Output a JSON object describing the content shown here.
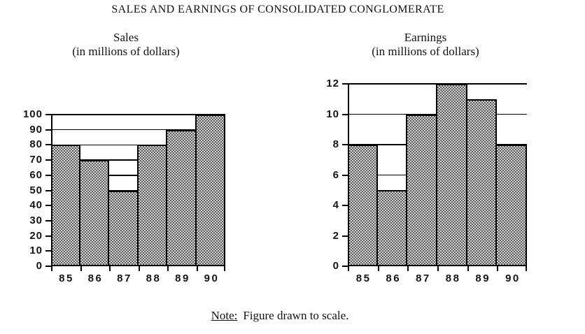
{
  "page": {
    "title": "SALES AND EARNINGS OF CONSOLIDATED CONGLOMERATE",
    "note_label": "Note:",
    "note_text": "Figure drawn to scale."
  },
  "chart_data": [
    {
      "type": "bar",
      "title": "Sales",
      "subtitle": "(in millions of dollars)",
      "categories": [
        "85",
        "86",
        "87",
        "88",
        "89",
        "90"
      ],
      "values": [
        80,
        70,
        50,
        80,
        90,
        100
      ],
      "xlabel": "",
      "ylabel": "",
      "ylim": [
        0,
        100
      ],
      "ytick_step": 10,
      "grid": true,
      "bar_gap": 0,
      "legend": null
    },
    {
      "type": "bar",
      "title": "Earnings",
      "subtitle": "(in millions of dollars)",
      "categories": [
        "85",
        "86",
        "87",
        "88",
        "89",
        "90"
      ],
      "values": [
        8,
        5,
        10,
        12,
        11,
        8
      ],
      "xlabel": "",
      "ylabel": "",
      "ylim": [
        0,
        12
      ],
      "ytick_step": 2,
      "grid": true,
      "bar_gap": 0,
      "legend": null
    }
  ],
  "colors": {
    "background": "#ffffff",
    "axis": "#000000",
    "bar_pattern_dark": "#5e5e5e",
    "bar_pattern_light": "#d4d4d4",
    "text": "#111111"
  }
}
